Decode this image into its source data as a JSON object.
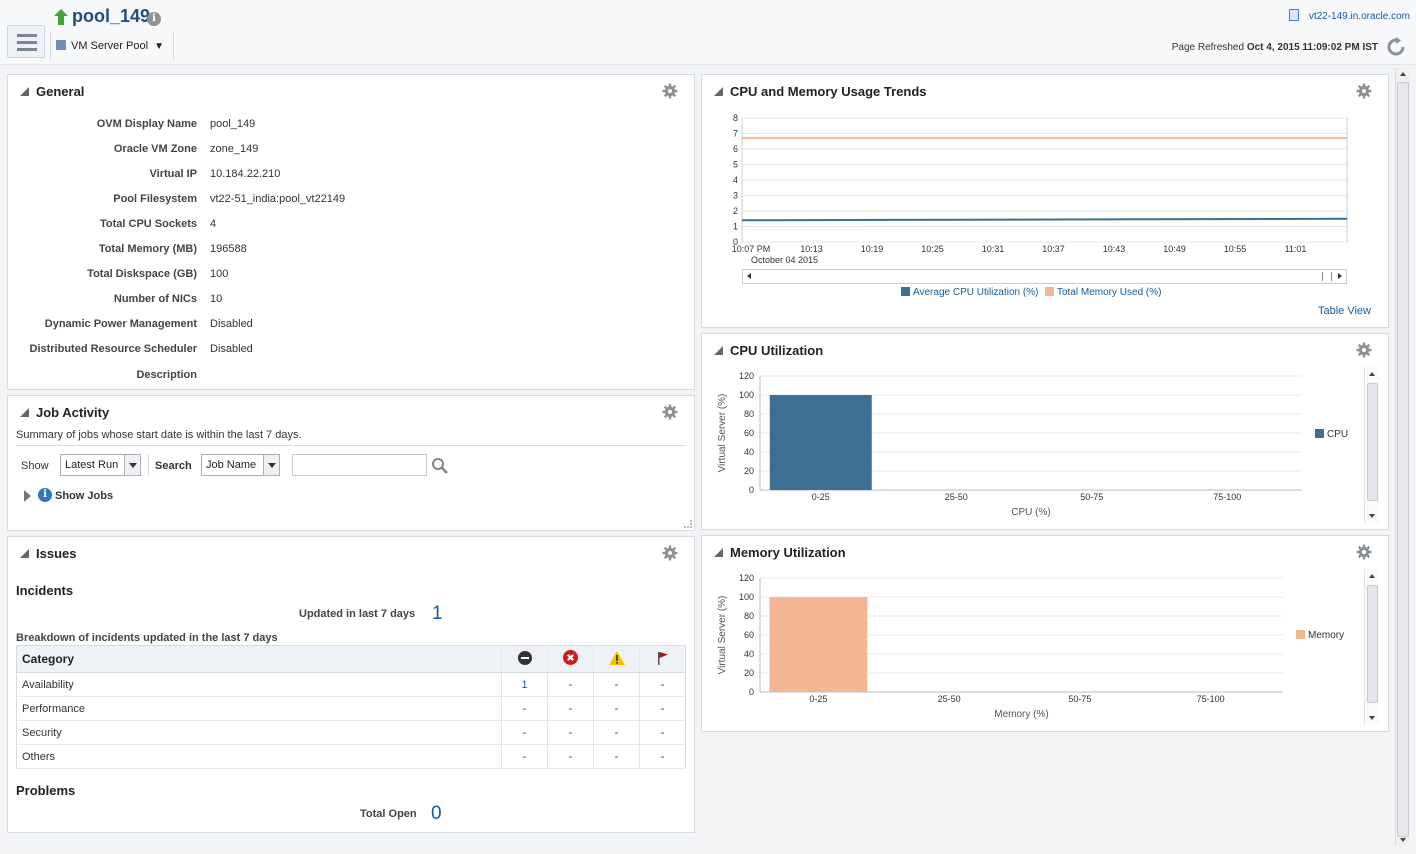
{
  "header": {
    "title": "pool_149",
    "host_link": "vt22-149.in.oracle.com",
    "menu_label": "VM Server Pool",
    "refresh_label": "Page Refreshed",
    "refresh_time": "Oct 4, 2015 11:09:02 PM IST"
  },
  "general": {
    "title": "General",
    "rows": [
      {
        "key": "OVM Display Name",
        "value": "pool_149"
      },
      {
        "key": "Oracle VM Zone",
        "value": "zone_149"
      },
      {
        "key": "Virtual IP",
        "value": "10.184.22.210"
      },
      {
        "key": "Pool Filesystem",
        "value": "vt22-51_india:pool_vt22149"
      },
      {
        "key": "Total CPU Sockets",
        "value": "4"
      },
      {
        "key": "Total Memory (MB)",
        "value": "196588"
      },
      {
        "key": "Total Diskspace (GB)",
        "value": "100"
      },
      {
        "key": "Number of NICs",
        "value": "10"
      },
      {
        "key": "Dynamic Power Management",
        "value": "Disabled"
      },
      {
        "key": "Distributed Resource Scheduler",
        "value": "Disabled"
      },
      {
        "key": "Description",
        "value": ""
      }
    ]
  },
  "job_activity": {
    "title": "Job Activity",
    "summary": "Summary of jobs whose start date is within the last 7 days.",
    "show_label": "Show",
    "show_value": "Latest Run",
    "search_label": "Search",
    "search_by": "Job Name",
    "search_value": "",
    "show_jobs": "Show Jobs"
  },
  "issues": {
    "title": "Issues",
    "incidents_heading": "Incidents",
    "updated_label": "Updated in last 7 days",
    "updated_count": "1",
    "breakdown_heading": "Breakdown of incidents updated in the last 7 days",
    "category_header": "Category",
    "rows": [
      {
        "category": "Availability",
        "fatal": "1",
        "critical": "-",
        "warning": "-",
        "escalated": "-"
      },
      {
        "category": "Performance",
        "fatal": "-",
        "critical": "-",
        "warning": "-",
        "escalated": "-"
      },
      {
        "category": "Security",
        "fatal": "-",
        "critical": "-",
        "warning": "-",
        "escalated": "-"
      },
      {
        "category": "Others",
        "fatal": "-",
        "critical": "-",
        "warning": "-",
        "escalated": "-"
      }
    ],
    "problems_heading": "Problems",
    "total_open_label": "Total Open",
    "total_open_count": "0"
  },
  "trends": {
    "title": "CPU and Memory Usage Trends",
    "table_view": "Table View"
  },
  "cpu_util": {
    "title": "CPU Utilization"
  },
  "mem_util": {
    "title": "Memory Utilization"
  },
  "colors": {
    "cpu": "#3d6f94",
    "memory": "#f2b792",
    "link": "#145c9e"
  },
  "chart_data": [
    {
      "type": "line",
      "title": "CPU and Memory Usage Trends",
      "x": [
        "10:07 PM",
        "10:13",
        "10:19",
        "10:25",
        "10:31",
        "10:37",
        "10:43",
        "10:49",
        "10:55",
        "11:01"
      ],
      "x_sublabel": "October 04 2015",
      "ylim": [
        0,
        8
      ],
      "yticks": [
        "0",
        "1",
        "2",
        "3",
        "4",
        "5",
        "6",
        "7",
        "8"
      ],
      "series": [
        {
          "name": "Average CPU Utilization (%)",
          "start": 1.4,
          "end": 1.5
        },
        {
          "name": "Total Memory Used (%)",
          "start": 6.7,
          "end": 6.7
        }
      ]
    },
    {
      "type": "bar",
      "title": "CPU Utilization",
      "categories": [
        "0-25",
        "25-50",
        "50-75",
        "75-100"
      ],
      "values": [
        100,
        0,
        0,
        0
      ],
      "ylim": [
        0,
        120
      ],
      "yticks": [
        "0",
        "20",
        "40",
        "60",
        "80",
        "100",
        "120"
      ],
      "xlabel": "CPU (%)",
      "ylabel": "Virtual Server (%)",
      "legend": "CPU"
    },
    {
      "type": "bar",
      "title": "Memory Utilization",
      "categories": [
        "0-25",
        "25-50",
        "50-75",
        "75-100"
      ],
      "values": [
        100,
        0,
        0,
        0
      ],
      "ylim": [
        0,
        120
      ],
      "yticks": [
        "0",
        "20",
        "40",
        "60",
        "80",
        "100",
        "120"
      ],
      "xlabel": "Memory (%)",
      "ylabel": "Virtual Server (%)",
      "legend": "Memory"
    }
  ]
}
